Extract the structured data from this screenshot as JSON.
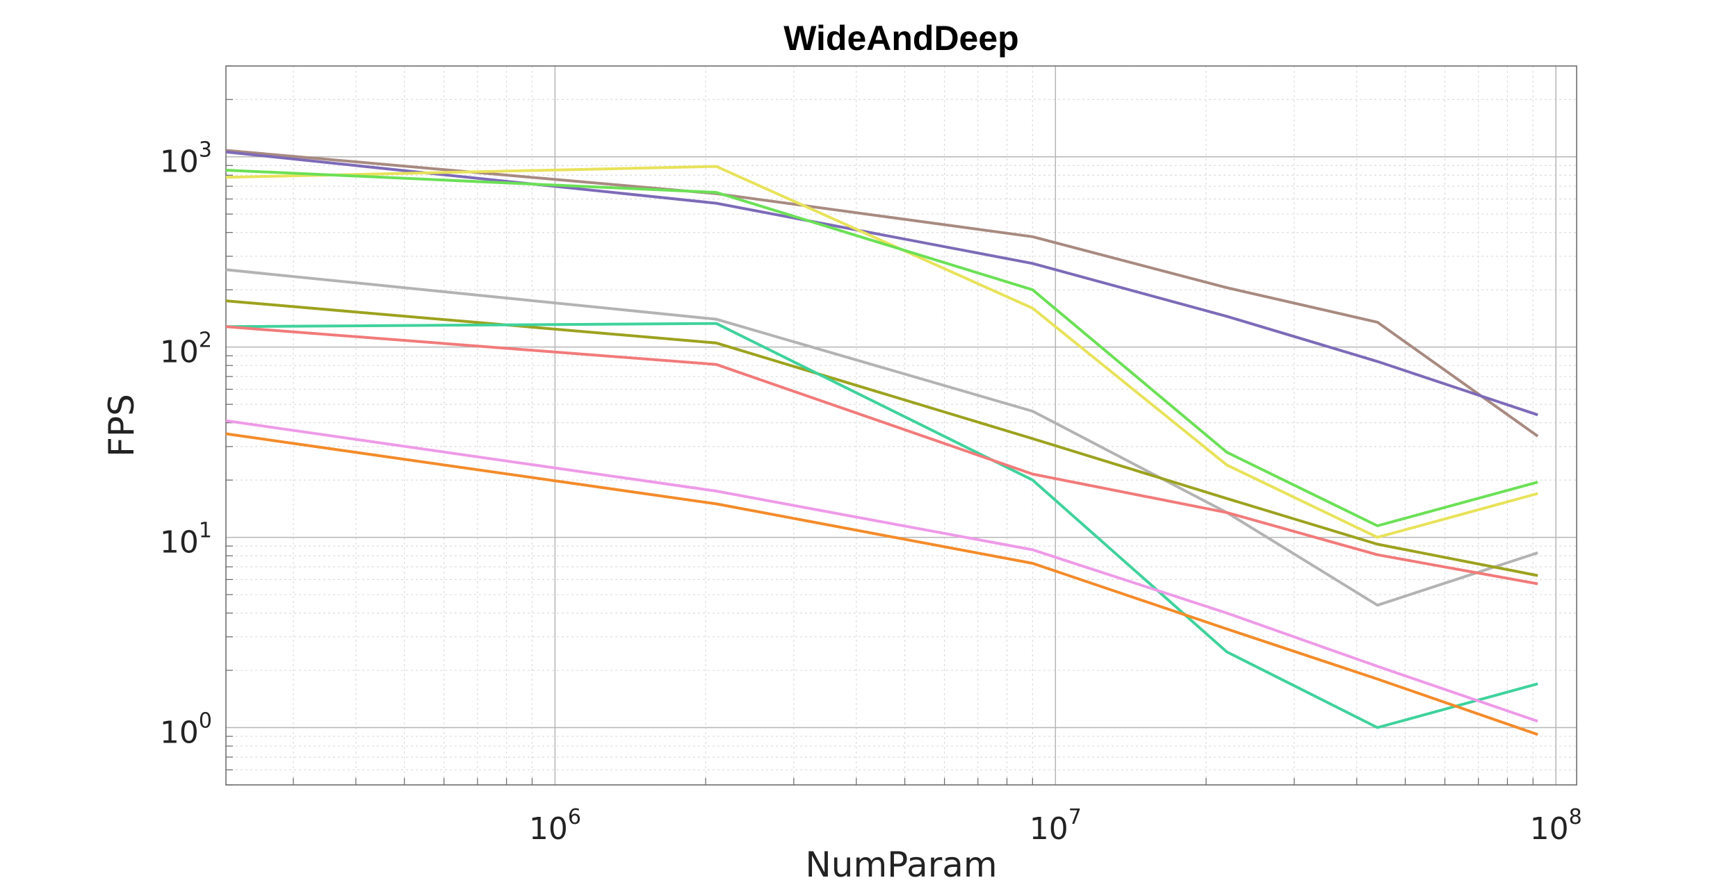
{
  "chart_data": {
    "type": "line",
    "title": "WideAndDeep",
    "xlabel": "NumParam",
    "ylabel": "FPS",
    "x_scale": "log",
    "y_scale": "log",
    "xlim": [
      220000,
      110000000
    ],
    "ylim": [
      0.5,
      3000
    ],
    "grid": true,
    "x_ticks": [
      {
        "value": 1000000,
        "base": "10",
        "exp": "6"
      },
      {
        "value": 10000000,
        "base": "10",
        "exp": "7"
      },
      {
        "value": 100000000,
        "base": "10",
        "exp": "8"
      }
    ],
    "y_ticks": [
      {
        "value": 1,
        "base": "10",
        "exp": "0"
      },
      {
        "value": 10,
        "base": "10",
        "exp": "1"
      },
      {
        "value": 100,
        "base": "10",
        "exp": "2"
      },
      {
        "value": 1000,
        "base": "10",
        "exp": "3"
      }
    ],
    "x": [
      220000,
      2100000,
      9000000,
      22000000,
      44000000,
      92000000
    ],
    "series": [
      {
        "color": "#a88a80",
        "values": [
          1080,
          640,
          380,
          205,
          135,
          34
        ]
      },
      {
        "color": "#7d6ab8",
        "values": [
          1060,
          570,
          275,
          145,
          84,
          44
        ]
      },
      {
        "color": "#e8e25a",
        "values": [
          780,
          890,
          160,
          24,
          10,
          17
        ]
      },
      {
        "color": "#6be056",
        "values": [
          850,
          650,
          200,
          28,
          11.5,
          19.5
        ]
      },
      {
        "color": "#b3b3b3",
        "values": [
          255,
          140,
          46,
          13.5,
          4.4,
          8.3
        ]
      },
      {
        "color": "#9ca21e",
        "values": [
          175,
          105,
          33,
          16,
          9.2,
          6.3
        ]
      },
      {
        "color": "#3fd29c",
        "values": [
          128,
          133,
          20,
          2.5,
          1.0,
          1.7
        ]
      },
      {
        "color": "#f27a7a",
        "values": [
          128,
          81,
          21.5,
          13.5,
          8.1,
          5.7
        ]
      },
      {
        "color": "#ee9ae8",
        "values": [
          41,
          17.5,
          8.6,
          4.0,
          2.1,
          1.08
        ]
      },
      {
        "color": "#f48b2a",
        "values": [
          35,
          15,
          7.3,
          3.3,
          1.8,
          0.92
        ]
      }
    ]
  }
}
